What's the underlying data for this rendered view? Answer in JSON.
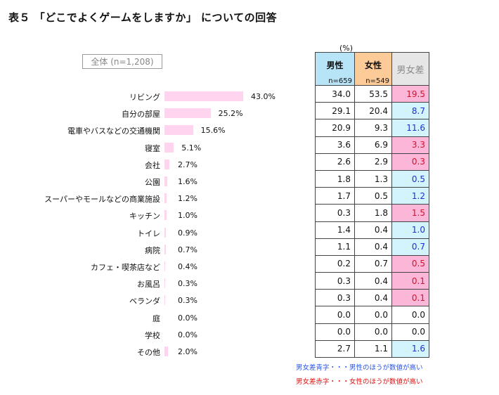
{
  "title": "表５ 「どこでよくゲームをしますか」 についての回答",
  "total_label": "全体 (n=1,208)",
  "unit": "(%)",
  "header": {
    "male": "男性",
    "male_n": "n=659",
    "female": "女性",
    "female_n": "n=549",
    "diff": "男女差"
  },
  "colors": {
    "bar": "#ffd4ee",
    "male_header": "#b7e4f6",
    "female_header": "#fccb97",
    "diff_male_higher": "#d4f4fd",
    "diff_female_higher": "#fcb6d8"
  },
  "chart_data": {
    "type": "bar",
    "orientation": "horizontal",
    "title": "表５ 「どこでよくゲームをしますか」 についての回答",
    "series_name": "全体 (n=1,208)",
    "categories": [
      "リビング",
      "自分の部屋",
      "電車やバスなどの交通機関",
      "寝室",
      "会社",
      "公園",
      "スーパーやモールなどの商業施設",
      "キッチン",
      "トイレ",
      "病院",
      "カフェ・喫茶店など",
      "お風呂",
      "ベランダ",
      "庭",
      "学校",
      "その他"
    ],
    "values": [
      43.0,
      25.2,
      15.6,
      5.1,
      2.7,
      1.6,
      1.2,
      1.0,
      0.9,
      0.7,
      0.4,
      0.3,
      0.3,
      0.0,
      0.0,
      2.0
    ],
    "value_labels": [
      "43.0%",
      "25.2%",
      "15.6%",
      "5.1%",
      "2.7%",
      "1.6%",
      "1.2%",
      "1.0%",
      "0.9%",
      "0.7%",
      "0.4%",
      "0.3%",
      "0.3%",
      "0.0%",
      "0.0%",
      "2.0%"
    ],
    "xlim": [
      0,
      50
    ],
    "table": {
      "male": [
        "34.0",
        "29.1",
        "20.9",
        "3.6",
        "2.6",
        "1.8",
        "1.7",
        "0.3",
        "1.4",
        "1.1",
        "0.2",
        "0.3",
        "0.3",
        "0.0",
        "0.0",
        "2.7"
      ],
      "female": [
        "53.5",
        "20.4",
        "9.3",
        "6.9",
        "2.9",
        "1.3",
        "0.5",
        "1.8",
        "0.4",
        "0.4",
        "0.7",
        "0.4",
        "0.4",
        "0.0",
        "0.0",
        "1.1"
      ],
      "diff": [
        "19.5",
        "8.7",
        "11.6",
        "3.3",
        "0.3",
        "0.5",
        "1.2",
        "1.5",
        "1.0",
        "0.7",
        "0.5",
        "0.1",
        "0.1",
        "0.0",
        "0.0",
        "1.6"
      ],
      "diff_type": [
        "female",
        "male",
        "male",
        "female",
        "female",
        "male",
        "male",
        "female",
        "male",
        "male",
        "female",
        "female",
        "female",
        "none",
        "none",
        "male"
      ]
    }
  },
  "notes": {
    "blue": "男女差青字・・・男性のほうが数値が高い",
    "red": "男女差赤字・・・女性のほうが数値が高い"
  }
}
